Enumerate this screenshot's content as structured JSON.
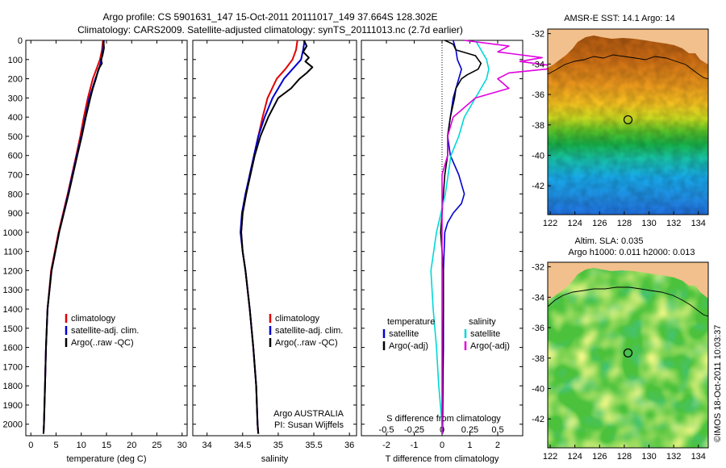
{
  "header": {
    "line1": "Argo profile: CS 5901631_147 15-Oct-2011 20111017_149 37.664S 128.302E",
    "line2": "Climatology: CARS2009. Satellite-adjusted climatology: synTS_20111013.nc (2.7d earlier)"
  },
  "colors": {
    "climatology": "#e00000",
    "satellite": "#0000d0",
    "argo": "#000000",
    "salinity_sat": "#00d8d8",
    "salinity_argo": "#e000e0",
    "land": "#f2c08c"
  },
  "chart_data": [
    {
      "id": "temperature",
      "type": "line",
      "xlabel": "temperature (deg C)",
      "ylabel": "",
      "xlim": [
        -1,
        31
      ],
      "ylim": [
        2060,
        0
      ],
      "xticks": [
        "0",
        "5",
        "10",
        "15",
        "20",
        "25",
        "30"
      ],
      "xtick_values": [
        0,
        5,
        10,
        15,
        20,
        25,
        30
      ],
      "yticks": [
        "0",
        "100",
        "200",
        "300",
        "400",
        "500",
        "600",
        "700",
        "800",
        "900",
        "1000",
        "1100",
        "1200",
        "1300",
        "1400",
        "1500",
        "1600",
        "1700",
        "1800",
        "1900",
        "2000"
      ],
      "ytick_values": [
        0,
        100,
        200,
        300,
        400,
        500,
        600,
        700,
        800,
        900,
        1000,
        1100,
        1200,
        1300,
        1400,
        1500,
        1600,
        1700,
        1800,
        1900,
        2000
      ],
      "legend": [
        "climatology",
        "satellite-adj. clim.",
        "Argo(..raw -QC)"
      ],
      "series": [
        {
          "name": "climatology",
          "color": "#e00000",
          "depth": [
            0,
            50,
            100,
            150,
            200,
            300,
            400,
            500,
            600,
            800,
            1000,
            1200,
            1400,
            1600,
            1800,
            2000,
            2050
          ],
          "values": [
            14.3,
            14.1,
            13.7,
            13.0,
            12.3,
            11.3,
            10.5,
            9.8,
            9.0,
            7.3,
            5.5,
            4.0,
            3.3,
            3.0,
            2.8,
            2.6,
            2.5
          ]
        },
        {
          "name": "satellite-adj. clim.",
          "color": "#0000d0",
          "depth": [
            0,
            50,
            100,
            150,
            200,
            300,
            400,
            500,
            600,
            800,
            1000,
            1200,
            1400,
            1600,
            1800,
            2000,
            2050
          ],
          "values": [
            14.5,
            14.3,
            14.0,
            13.5,
            12.8,
            11.6,
            10.8,
            10.0,
            9.1,
            7.4,
            5.6,
            4.1,
            3.3,
            3.0,
            2.8,
            2.6,
            2.5
          ]
        },
        {
          "name": "Argo(..raw -QC)",
          "color": "#000000",
          "depth": [
            0,
            40,
            80,
            100,
            120,
            150,
            200,
            250,
            300,
            400,
            500,
            600,
            800,
            1000,
            1200,
            1400,
            1600,
            1800,
            2000,
            2050
          ],
          "values": [
            14.4,
            14.5,
            14.2,
            13.9,
            14.1,
            13.4,
            12.9,
            12.3,
            11.8,
            10.9,
            10.1,
            9.2,
            7.5,
            5.6,
            4.1,
            3.3,
            3.0,
            2.8,
            2.6,
            2.5
          ]
        }
      ]
    },
    {
      "id": "salinity",
      "type": "line",
      "xlabel": "salinity",
      "ylabel": "",
      "xlim": [
        33.8,
        36.1
      ],
      "ylim": [
        2060,
        0
      ],
      "xticks": [
        "34",
        "34.5",
        "35",
        "35.5",
        "36"
      ],
      "xtick_values": [
        34,
        34.5,
        35,
        35.5,
        36
      ],
      "legend": [
        "climatology",
        "satellite-adj. clim.",
        "Argo(..raw -QC)"
      ],
      "annotations": [
        "Argo AUSTRALIA",
        "PI: Susan Wijffels"
      ],
      "series": [
        {
          "name": "climatology",
          "color": "#e00000",
          "depth": [
            0,
            50,
            100,
            150,
            200,
            300,
            400,
            500,
            600,
            700,
            800,
            900,
            1000,
            1100,
            1200,
            1400,
            1600,
            1800,
            2000,
            2050
          ],
          "values": [
            35.27,
            35.25,
            35.2,
            35.1,
            34.98,
            34.85,
            34.78,
            34.72,
            34.66,
            34.6,
            34.55,
            34.5,
            34.48,
            34.5,
            34.54,
            34.6,
            34.65,
            34.69,
            34.71,
            34.72
          ]
        },
        {
          "name": "satellite-adj. clim.",
          "color": "#0000d0",
          "depth": [
            0,
            50,
            100,
            150,
            200,
            300,
            400,
            500,
            600,
            700,
            800,
            900,
            1000,
            1100,
            1200,
            1400,
            1600,
            1800,
            2000,
            2050
          ],
          "values": [
            35.37,
            35.35,
            35.32,
            35.2,
            35.08,
            34.92,
            34.81,
            34.72,
            34.66,
            34.6,
            34.54,
            34.49,
            34.47,
            34.5,
            34.54,
            34.6,
            34.65,
            34.69,
            34.71,
            34.72
          ]
        },
        {
          "name": "Argo(..raw -QC)",
          "color": "#000000",
          "depth": [
            0,
            30,
            60,
            90,
            110,
            140,
            170,
            200,
            250,
            300,
            400,
            500,
            600,
            700,
            800,
            900,
            1000,
            1100,
            1200,
            1400,
            1600,
            1800,
            2000,
            2050
          ],
          "values": [
            35.36,
            35.4,
            35.35,
            35.43,
            35.38,
            35.48,
            35.4,
            35.3,
            35.18,
            35.0,
            34.86,
            34.75,
            34.67,
            34.61,
            34.55,
            34.5,
            34.48,
            34.5,
            34.54,
            34.6,
            34.65,
            34.69,
            34.71,
            34.72
          ]
        }
      ]
    },
    {
      "id": "difference",
      "type": "line",
      "xlabel": "T difference from climatology",
      "xlabel2": "S difference from climatology",
      "xlim": [
        -2.9,
        2.9
      ],
      "ylim": [
        2060,
        0
      ],
      "xticks": [
        "-2",
        "-1",
        "0",
        "1",
        "2"
      ],
      "xtick_values": [
        -2,
        -1,
        0,
        1,
        2
      ],
      "xticks_top": [
        "-0.5",
        "-0.25",
        "0",
        "0.25",
        "0.5"
      ],
      "xtick_top_values": [
        -0.5,
        -0.25,
        0,
        0.25,
        0.5
      ],
      "legend_groups": [
        {
          "title": "temperature",
          "entries": [
            "satellite",
            "Argo(-adj)"
          ]
        },
        {
          "title": "salinity",
          "entries": [
            "satellite",
            "Argo(-adj)"
          ]
        }
      ],
      "series": [
        {
          "name": "temperature satellite",
          "color": "#0000d0",
          "depth": [
            0,
            50,
            100,
            150,
            200,
            300,
            400,
            500,
            600,
            700,
            800,
            850,
            900,
            950,
            1000,
            1200,
            1400,
            1600,
            1800,
            2000,
            2050
          ],
          "values": [
            0.4,
            0.5,
            0.55,
            0.7,
            0.6,
            0.4,
            0.3,
            0.2,
            0.3,
            0.6,
            0.8,
            0.7,
            0.4,
            0.2,
            0.1,
            0.05,
            0.05,
            0.05,
            0.03,
            0.02,
            0.02
          ]
        },
        {
          "name": "temperature Argo(-adj)",
          "color": "#000000",
          "depth": [
            0,
            20,
            50,
            80,
            100,
            120,
            150,
            180,
            200,
            250,
            300,
            400,
            500,
            600,
            700,
            800,
            900,
            1000,
            1100,
            1200,
            1400,
            1600,
            1800,
            2000,
            2050
          ],
          "values": [
            0.1,
            0.4,
            0.5,
            1.2,
            1.3,
            1.4,
            1.3,
            0.9,
            0.7,
            0.5,
            0.45,
            0.3,
            0.2,
            0.2,
            0.1,
            0.05,
            0.0,
            -0.05,
            0.0,
            0.05,
            0.05,
            0.03,
            0.03,
            0.02,
            0.02
          ]
        },
        {
          "name": "salinity satellite",
          "color": "#00d8d8",
          "depth": [
            0,
            50,
            100,
            150,
            200,
            300,
            400,
            500,
            600,
            800,
            1000,
            1200,
            1400,
            1600,
            1800,
            2000,
            2050
          ],
          "values": [
            0.3,
            0.35,
            0.4,
            0.42,
            0.4,
            0.3,
            0.2,
            0.15,
            0.08,
            0.03,
            -0.05,
            -0.1,
            -0.08,
            -0.05,
            -0.03,
            0.0,
            0.0
          ]
        },
        {
          "name": "salinity Argo(-adj)",
          "color": "#e000e0",
          "depth": [
            0,
            30,
            60,
            90,
            110,
            140,
            170,
            200,
            250,
            300,
            400,
            500,
            600,
            700,
            800,
            900,
            1000,
            1200,
            1400,
            1600,
            1800,
            2000,
            2050
          ],
          "values": [
            0.2,
            0.6,
            0.5,
            0.9,
            0.7,
            1.1,
            0.6,
            0.5,
            0.6,
            0.3,
            0.1,
            0.05,
            0.05,
            0.0,
            0.0,
            0.0,
            0.0,
            0.0,
            0.0,
            0.0,
            0.0,
            0.0,
            0.0
          ]
        }
      ]
    },
    {
      "id": "sst-map",
      "type": "heatmap",
      "title": "AMSR-E SST: 14.1  Argo: 14",
      "xlim": [
        121.8,
        134.8
      ],
      "ylim": [
        -43.9,
        -31.7
      ],
      "xticks": [
        "122",
        "124",
        "126",
        "128",
        "130",
        "132",
        "134"
      ],
      "xtick_values": [
        122,
        124,
        126,
        128,
        130,
        132,
        134
      ],
      "yticks": [
        "-32",
        "-34",
        "-36",
        "-38",
        "-40",
        "-42"
      ],
      "ytick_values": [
        -32,
        -34,
        -36,
        -38,
        -40,
        -42
      ],
      "marker": {
        "lon": 128.302,
        "lat": -37.664
      }
    },
    {
      "id": "sla-map",
      "type": "heatmap",
      "title": "Altim. SLA: 0.035",
      "title2": "Argo h1000: 0.011 h2000: 0.013",
      "xlim": [
        121.8,
        134.8
      ],
      "ylim": [
        -43.9,
        -31.7
      ],
      "xticks": [
        "122",
        "124",
        "126",
        "128",
        "130",
        "132",
        "134"
      ],
      "xtick_values": [
        122,
        124,
        126,
        128,
        130,
        132,
        134
      ],
      "yticks": [
        "-32",
        "-34",
        "-36",
        "-38",
        "-40",
        "-42"
      ],
      "ytick_values": [
        -32,
        -34,
        -36,
        -38,
        -40,
        -42
      ],
      "marker": {
        "lon": 128.302,
        "lat": -37.664
      }
    }
  ],
  "watermark": "©IMOS 18-Oct-2011 10:03:37"
}
